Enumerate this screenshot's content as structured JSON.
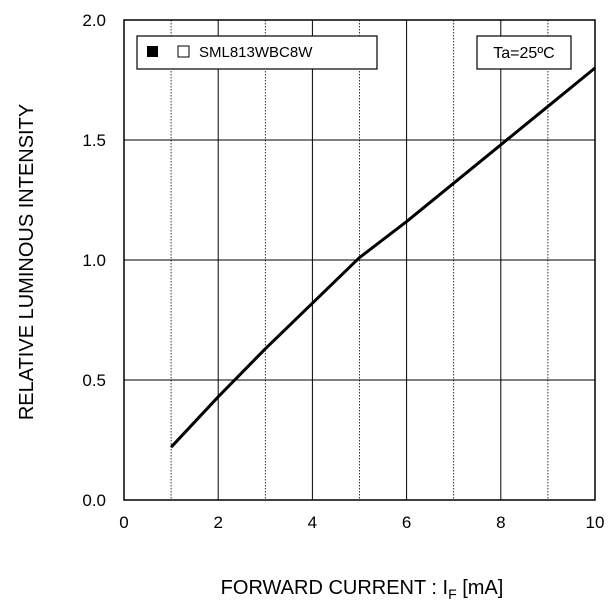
{
  "chart_data": {
    "type": "line",
    "xlabel_main": "FORWARD CURRENT : I",
    "xlabel_sub": "F",
    "xlabel_unit": " [mA]",
    "ylabel": "RELATIVE LUMINOUS INTENSITY",
    "xlim": [
      0,
      10
    ],
    "ylim": [
      0,
      2.0
    ],
    "x_ticks": [
      "0",
      "2",
      "4",
      "6",
      "8",
      "10"
    ],
    "y_ticks": [
      "0.0",
      "0.5",
      "1.0",
      "1.5",
      "2.0"
    ],
    "grid": true,
    "legend": {
      "placement": "top-left",
      "label": "SML813WBC8W"
    },
    "annotation": "Ta=25ºC",
    "series": [
      {
        "name": "SML813WBC8W",
        "x": [
          1,
          2,
          3,
          4,
          5,
          6,
          7,
          8,
          9,
          10
        ],
        "y": [
          0.22,
          0.43,
          0.63,
          0.82,
          1.01,
          1.16,
          1.32,
          1.48,
          1.64,
          1.8
        ]
      }
    ]
  }
}
